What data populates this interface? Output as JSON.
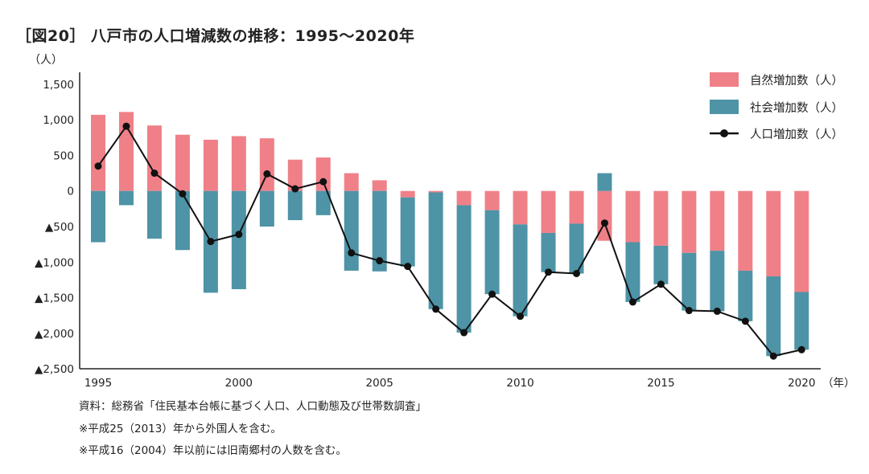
{
  "title": "［図20］ 八戸市の人口増減数の推移：1995〜2020年",
  "notes": [
    "資料：総務省「住民基本台帳に基づく人口、人口動態及び世帯数調査」",
    "※平成25（2013）年から外国人を含む。",
    "※平成16（2004）年以前には旧南郷村の人数を含む。"
  ],
  "chart_data": {
    "type": "bar",
    "stacked": true,
    "ylabel": "（人）",
    "xlabel": "（年）",
    "ylim": [
      -2500,
      1500
    ],
    "yticks": [
      1500,
      1000,
      500,
      0,
      -500,
      -1000,
      -1500,
      -2000,
      -2500
    ],
    "ytick_labels": [
      "1,500",
      "1,000",
      "500",
      "0",
      "▲500",
      "▲1,000",
      "▲1,500",
      "▲2,000",
      "▲2,500"
    ],
    "xtick_labels": [
      "1995",
      "2000",
      "2005",
      "2010",
      "2015",
      "2020"
    ],
    "legend_position": "top-right",
    "grid": false,
    "x": [
      1995,
      1996,
      1997,
      1998,
      1999,
      2000,
      2001,
      2002,
      2003,
      2004,
      2005,
      2006,
      2007,
      2008,
      2009,
      2010,
      2011,
      2012,
      2013,
      2014,
      2015,
      2016,
      2017,
      2018,
      2019,
      2020
    ],
    "series": [
      {
        "name": "自然増加数（人）",
        "type": "bar",
        "color": "#ef8088",
        "values": [
          1070,
          1110,
          920,
          790,
          720,
          770,
          740,
          440,
          470,
          250,
          150,
          -90,
          -20,
          -200,
          -270,
          -470,
          -590,
          -460,
          -700,
          -720,
          -770,
          -870,
          -840,
          -1120,
          -1200,
          -1420
        ]
      },
      {
        "name": "社会増加数（人）",
        "type": "bar",
        "color": "#4e93a6",
        "values": [
          -720,
          -200,
          -670,
          -830,
          -1430,
          -1380,
          -500,
          -410,
          -340,
          -1120,
          -1130,
          -970,
          -1640,
          -1790,
          -1180,
          -1290,
          -550,
          -700,
          250,
          -840,
          -540,
          -810,
          -850,
          -710,
          -1120,
          -810
        ]
      },
      {
        "name": "人口増加数（人）",
        "type": "line",
        "color": "#111111",
        "values": [
          350,
          910,
          250,
          -40,
          -710,
          -610,
          240,
          30,
          130,
          -870,
          -980,
          -1060,
          -1660,
          -1990,
          -1450,
          -1760,
          -1140,
          -1160,
          -450,
          -1560,
          -1310,
          -1680,
          -1690,
          -1830,
          -2320,
          -2230
        ]
      }
    ]
  }
}
